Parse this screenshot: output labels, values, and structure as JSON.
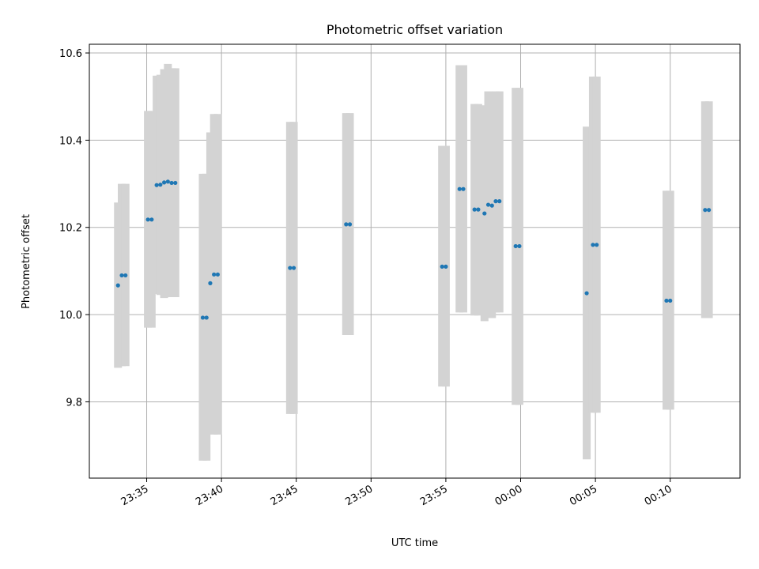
{
  "chart_data": {
    "type": "scatter",
    "title": "Photometric offset variation",
    "xlabel": "UTC time",
    "ylabel": "Photometric offset",
    "x_unit": "time (HH:MM, UTC)",
    "xlim": [
      "23:31:10",
      "00:14:40"
    ],
    "ylim": [
      9.625,
      10.62
    ],
    "xticks": [
      "23:35",
      "23:40",
      "23:45",
      "23:50",
      "23:55",
      "00:00",
      "00:05",
      "00:10"
    ],
    "yticks": [
      9.8,
      10.0,
      10.2,
      10.4,
      10.6
    ],
    "grid": true,
    "point_color": "#1f77b4",
    "errorbar_color": "#d3d3d3",
    "series": [
      {
        "points": [
          {
            "x": "23:33:05",
            "y": 10.067,
            "lo": 9.878,
            "hi": 10.257
          },
          {
            "x": "23:33:20",
            "y": 10.09,
            "lo": 9.882,
            "hi": 10.3
          },
          {
            "x": "23:33:35",
            "y": 10.09,
            "lo": 9.882,
            "hi": 10.3
          },
          {
            "x": "23:35:05",
            "y": 10.218,
            "lo": 9.97,
            "hi": 10.467
          },
          {
            "x": "23:35:20",
            "y": 10.218,
            "lo": 9.97,
            "hi": 10.467
          },
          {
            "x": "23:35:40",
            "y": 10.297,
            "lo": 10.047,
            "hi": 10.548
          },
          {
            "x": "23:35:55",
            "y": 10.298,
            "lo": 10.045,
            "hi": 10.55
          },
          {
            "x": "23:36:10",
            "y": 10.303,
            "lo": 10.038,
            "hi": 10.563
          },
          {
            "x": "23:36:25",
            "y": 10.305,
            "lo": 10.04,
            "hi": 10.575
          },
          {
            "x": "23:36:40",
            "y": 10.302,
            "lo": 10.042,
            "hi": 10.565
          },
          {
            "x": "23:36:55",
            "y": 10.302,
            "lo": 10.04,
            "hi": 10.565
          },
          {
            "x": "23:38:45",
            "y": 9.993,
            "lo": 9.665,
            "hi": 10.323
          },
          {
            "x": "23:39:00",
            "y": 9.993,
            "lo": 9.665,
            "hi": 10.323
          },
          {
            "x": "23:39:15",
            "y": 10.072,
            "lo": 9.728,
            "hi": 10.418
          },
          {
            "x": "23:39:30",
            "y": 10.092,
            "lo": 9.725,
            "hi": 10.46
          },
          {
            "x": "23:39:45",
            "y": 10.092,
            "lo": 9.725,
            "hi": 10.46
          },
          {
            "x": "23:44:35",
            "y": 10.107,
            "lo": 9.772,
            "hi": 10.442
          },
          {
            "x": "23:44:50",
            "y": 10.107,
            "lo": 9.772,
            "hi": 10.442
          },
          {
            "x": "23:48:20",
            "y": 10.207,
            "lo": 9.953,
            "hi": 10.462
          },
          {
            "x": "23:48:35",
            "y": 10.207,
            "lo": 9.953,
            "hi": 10.462
          },
          {
            "x": "23:54:45",
            "y": 10.11,
            "lo": 9.835,
            "hi": 10.387
          },
          {
            "x": "23:55:00",
            "y": 10.11,
            "lo": 9.835,
            "hi": 10.387
          },
          {
            "x": "23:55:55",
            "y": 10.288,
            "lo": 10.005,
            "hi": 10.572
          },
          {
            "x": "23:56:10",
            "y": 10.288,
            "lo": 10.005,
            "hi": 10.572
          },
          {
            "x": "23:56:55",
            "y": 10.241,
            "lo": 9.998,
            "hi": 10.483
          },
          {
            "x": "23:57:10",
            "y": 10.241,
            "lo": 9.998,
            "hi": 10.483
          },
          {
            "x": "23:57:35",
            "y": 10.232,
            "lo": 9.985,
            "hi": 10.48
          },
          {
            "x": "23:57:50",
            "y": 10.252,
            "lo": 9.995,
            "hi": 10.512
          },
          {
            "x": "23:58:05",
            "y": 10.25,
            "lo": 9.992,
            "hi": 10.508
          },
          {
            "x": "23:58:20",
            "y": 10.26,
            "lo": 10.005,
            "hi": 10.512
          },
          {
            "x": "23:58:35",
            "y": 10.26,
            "lo": 10.005,
            "hi": 10.512
          },
          {
            "x": "23:59:40",
            "y": 10.157,
            "lo": 9.793,
            "hi": 10.52
          },
          {
            "x": "23:59:55",
            "y": 10.157,
            "lo": 9.793,
            "hi": 10.52
          },
          {
            "x": "00:04:25",
            "y": 10.049,
            "lo": 9.668,
            "hi": 10.431
          },
          {
            "x": "00:04:50",
            "y": 10.16,
            "lo": 9.775,
            "hi": 10.546
          },
          {
            "x": "00:05:05",
            "y": 10.16,
            "lo": 9.775,
            "hi": 10.546
          },
          {
            "x": "00:09:45",
            "y": 10.032,
            "lo": 9.782,
            "hi": 10.284
          },
          {
            "x": "00:10:00",
            "y": 10.032,
            "lo": 9.782,
            "hi": 10.284
          },
          {
            "x": "00:12:20",
            "y": 10.24,
            "lo": 9.992,
            "hi": 10.489
          },
          {
            "x": "00:12:35",
            "y": 10.24,
            "lo": 9.992,
            "hi": 10.489
          }
        ]
      }
    ]
  }
}
